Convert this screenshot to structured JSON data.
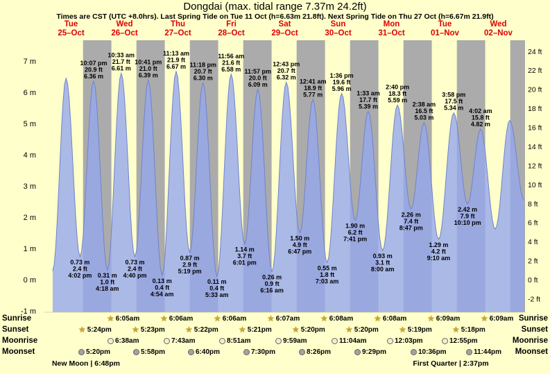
{
  "title": "Dongdai (max. tidal range 7.37m 24.2ft)",
  "subtitle": "Times are CST (UTC +8.0hrs). Last Spring Tide on Tue 11 Oct (h=6.63m 21.8ft). Next Spring Tide on Thu 27 Oct (h=6.67m 21.9ft)",
  "days": [
    {
      "name": "Tue",
      "date": "25–Oct"
    },
    {
      "name": "Wed",
      "date": "26–Oct"
    },
    {
      "name": "Thu",
      "date": "27–Oct"
    },
    {
      "name": "Fri",
      "date": "28–Oct"
    },
    {
      "name": "Sat",
      "date": "29–Oct"
    },
    {
      "name": "Sun",
      "date": "30–Oct"
    },
    {
      "name": "Mon",
      "date": "31–Oct"
    },
    {
      "name": "Tue",
      "date": "01–Nov"
    },
    {
      "name": "Wed",
      "date": "02–Nov"
    }
  ],
  "chart_data": {
    "type": "area",
    "title": "Dongdai tide curve",
    "num_days": 9,
    "y_axis_left": {
      "unit": "m",
      "ticks": [
        7,
        6,
        5,
        4,
        3,
        2,
        1,
        0,
        -1
      ]
    },
    "y_axis_right": {
      "unit": "ft",
      "ticks": [
        24,
        22,
        20,
        18,
        16,
        14,
        12,
        10,
        8,
        6,
        4,
        2,
        0,
        -2
      ]
    },
    "night": {
      "sunset_frac": 0.7236,
      "sunrise_frac": 0.2542
    },
    "colors": {
      "background": "#ffffcc",
      "night_band": "#ababab",
      "tide_fill": "#96a7ee",
      "tide_line": "#7083c9",
      "day_label": "#dd0000"
    },
    "tide_extremes": [
      {
        "day": 1,
        "hour": 3.7,
        "m": 0.28,
        "type": "low",
        "time": null,
        "ft": null
      },
      {
        "day": 1,
        "hour": 9.75,
        "m": 6.45,
        "type": "high",
        "time": null,
        "ft": null
      },
      {
        "day": 1,
        "hour": 16.03,
        "m": 0.73,
        "ft": 2.4,
        "time": "4:02 pm",
        "type": "low"
      },
      {
        "day": 1,
        "hour": 22.12,
        "m": 6.36,
        "ft": 20.9,
        "time": "10:07 pm",
        "type": "high"
      },
      {
        "day": 2,
        "hour": 4.3,
        "m": 0.31,
        "ft": 1.0,
        "time": "4:18 am",
        "type": "low"
      },
      {
        "day": 2,
        "hour": 10.55,
        "m": 6.61,
        "ft": 21.7,
        "time": "10:33 am",
        "type": "high"
      },
      {
        "day": 2,
        "hour": 16.67,
        "m": 0.73,
        "ft": 2.4,
        "time": "4:40 pm",
        "type": "low"
      },
      {
        "day": 2,
        "hour": 22.68,
        "m": 6.39,
        "ft": 21.0,
        "time": "10:41 pm",
        "type": "high"
      },
      {
        "day": 3,
        "hour": 4.9,
        "m": 0.13,
        "ft": 0.4,
        "time": "4:54 am",
        "type": "low"
      },
      {
        "day": 3,
        "hour": 11.22,
        "m": 6.67,
        "ft": 21.9,
        "time": "11:13 am",
        "type": "high"
      },
      {
        "day": 3,
        "hour": 17.32,
        "m": 0.87,
        "ft": 2.9,
        "time": "5:19 pm",
        "type": "low"
      },
      {
        "day": 3,
        "hour": 23.3,
        "m": 6.3,
        "ft": 20.7,
        "time": "11:18 pm",
        "type": "high"
      },
      {
        "day": 4,
        "hour": 5.55,
        "m": 0.11,
        "ft": 0.4,
        "time": "5:33 am",
        "type": "low"
      },
      {
        "day": 4,
        "hour": 11.93,
        "m": 6.58,
        "ft": 21.6,
        "time": "11:56 am",
        "type": "high"
      },
      {
        "day": 4,
        "hour": 18.02,
        "m": 1.14,
        "ft": 3.7,
        "time": "6:01 pm",
        "type": "low"
      },
      {
        "day": 4,
        "hour": 23.95,
        "m": 6.09,
        "ft": 20.0,
        "time": "11:57 pm",
        "type": "high"
      },
      {
        "day": 5,
        "hour": 6.27,
        "m": 0.26,
        "ft": 0.9,
        "time": "6:16 am",
        "type": "low"
      },
      {
        "day": 5,
        "hour": 12.72,
        "m": 6.32,
        "ft": 20.7,
        "time": "12:43 pm",
        "type": "high"
      },
      {
        "day": 5,
        "hour": 18.78,
        "m": 1.5,
        "ft": 4.9,
        "time": "6:47 pm",
        "type": "low"
      },
      {
        "day": 6,
        "hour": 0.68,
        "m": 5.77,
        "ft": 18.9,
        "time": "12:41 am",
        "type": "high"
      },
      {
        "day": 6,
        "hour": 7.05,
        "m": 0.55,
        "ft": 1.8,
        "time": "7:03 am",
        "type": "low"
      },
      {
        "day": 6,
        "hour": 13.6,
        "m": 5.96,
        "ft": 19.6,
        "time": "1:36 pm",
        "type": "high"
      },
      {
        "day": 6,
        "hour": 19.68,
        "m": 1.9,
        "ft": 6.2,
        "time": "7:41 pm",
        "type": "low"
      },
      {
        "day": 7,
        "hour": 1.55,
        "m": 5.39,
        "ft": 17.7,
        "time": "1:33 am",
        "type": "high"
      },
      {
        "day": 7,
        "hour": 8.0,
        "m": 0.93,
        "ft": 3.1,
        "time": "8:00 am",
        "type": "low"
      },
      {
        "day": 7,
        "hour": 14.67,
        "m": 5.59,
        "ft": 18.3,
        "time": "2:40 pm",
        "type": "high"
      },
      {
        "day": 7,
        "hour": 20.78,
        "m": 2.26,
        "ft": 7.4,
        "time": "8:47 pm",
        "type": "low"
      },
      {
        "day": 8,
        "hour": 2.63,
        "m": 5.03,
        "ft": 16.5,
        "time": "2:38 am",
        "type": "high"
      },
      {
        "day": 8,
        "hour": 9.17,
        "m": 1.29,
        "ft": 4.2,
        "time": "9:10 am",
        "type": "low"
      },
      {
        "day": 8,
        "hour": 15.97,
        "m": 5.34,
        "ft": 17.5,
        "time": "3:58 pm",
        "type": "high"
      },
      {
        "day": 8,
        "hour": 22.17,
        "m": 2.42,
        "ft": 7.9,
        "time": "10:10 pm",
        "type": "low"
      },
      {
        "day": 9,
        "hour": 4.03,
        "m": 4.82,
        "ft": 15.8,
        "time": "4:02 am",
        "type": "high"
      },
      {
        "day": 9,
        "hour": 10.6,
        "m": 1.62,
        "type": "low",
        "time": null,
        "ft": null
      },
      {
        "day": 9,
        "hour": 17.1,
        "m": 5.1,
        "type": "high",
        "time": null,
        "ft": null
      },
      {
        "day": 9,
        "hour": 23.6,
        "m": 2.55,
        "type": "low",
        "time": null,
        "ft": null
      }
    ]
  },
  "astro": {
    "row_labels": {
      "sunrise": "Sunrise",
      "sunset": "Sunset",
      "moonrise": "Moonrise",
      "moonset": "Moonset"
    },
    "sunrise": [
      {
        "day": 2,
        "time": "6:05am",
        "hour": 6.08
      },
      {
        "day": 3,
        "time": "6:06am",
        "hour": 6.1
      },
      {
        "day": 4,
        "time": "6:06am",
        "hour": 6.1
      },
      {
        "day": 5,
        "time": "6:07am",
        "hour": 6.12
      },
      {
        "day": 6,
        "time": "6:08am",
        "hour": 6.13
      },
      {
        "day": 7,
        "time": "6:08am",
        "hour": 6.13
      },
      {
        "day": 8,
        "time": "6:09am",
        "hour": 6.15
      },
      {
        "day": 9,
        "time": "6:09am",
        "hour": 6.15
      }
    ],
    "sunset": [
      {
        "day": 1,
        "time": "5:24pm",
        "hour": 17.4
      },
      {
        "day": 2,
        "time": "5:23pm",
        "hour": 17.38
      },
      {
        "day": 3,
        "time": "5:22pm",
        "hour": 17.37
      },
      {
        "day": 4,
        "time": "5:21pm",
        "hour": 17.35
      },
      {
        "day": 5,
        "time": "5:20pm",
        "hour": 17.33
      },
      {
        "day": 6,
        "time": "5:20pm",
        "hour": 17.33
      },
      {
        "day": 7,
        "time": "5:19pm",
        "hour": 17.32
      },
      {
        "day": 8,
        "time": "5:18pm",
        "hour": 17.3
      }
    ],
    "moonrise": [
      {
        "day": 2,
        "time": "6:38am",
        "hour": 6.63
      },
      {
        "day": 3,
        "time": "7:43am",
        "hour": 7.72
      },
      {
        "day": 4,
        "time": "8:51am",
        "hour": 8.85
      },
      {
        "day": 5,
        "time": "9:59am",
        "hour": 9.98
      },
      {
        "day": 6,
        "time": "11:04am",
        "hour": 11.07
      },
      {
        "day": 7,
        "time": "12:03pm",
        "hour": 12.05
      },
      {
        "day": 8,
        "time": "12:55pm",
        "hour": 12.92
      }
    ],
    "moonset": [
      {
        "day": 1,
        "time": "5:20pm",
        "hour": 17.33
      },
      {
        "day": 2,
        "time": "5:58pm",
        "hour": 17.97
      },
      {
        "day": 3,
        "time": "6:40pm",
        "hour": 18.67
      },
      {
        "day": 4,
        "time": "7:30pm",
        "hour": 19.5
      },
      {
        "day": 5,
        "time": "8:26pm",
        "hour": 20.43
      },
      {
        "day": 6,
        "time": "9:29pm",
        "hour": 21.48
      },
      {
        "day": 7,
        "time": "10:36pm",
        "hour": 22.6
      },
      {
        "day": 8,
        "time": "11:44pm",
        "hour": 23.73
      }
    ],
    "phases": [
      {
        "label": "New Moon",
        "time": "6:48pm",
        "day": 1,
        "hour": 18.8
      },
      {
        "label": "First Quarter",
        "time": "2:37pm",
        "day": 8,
        "hour": 14.62
      }
    ]
  }
}
